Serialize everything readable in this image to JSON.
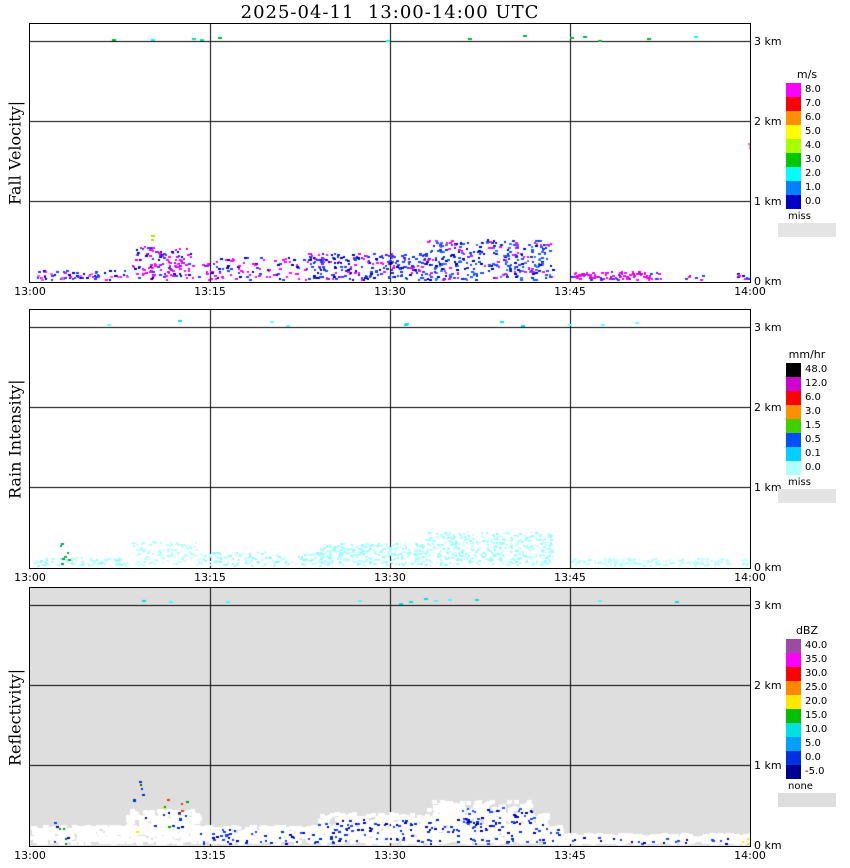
{
  "chart_data": {
    "type": "heatmap",
    "title": "2025-04-11  13:00-14:00 UTC",
    "x_ticks": [
      "13:00",
      "13:15",
      "13:30",
      "13:45",
      "14:00"
    ],
    "x_range_minutes": [
      0,
      60
    ],
    "y_ticks": [
      "3 km",
      "2 km",
      "1 km",
      "0 km"
    ],
    "y_range_km": [
      0,
      3.2
    ],
    "grid": true,
    "panels": [
      {
        "name": "Fall Velocity",
        "axis_label": "Fall Velocity|",
        "units": "m/s",
        "background": "#ffffff",
        "legend": {
          "title": "m/s",
          "entries": [
            {
              "label": "8.0",
              "color": "#ff00ff"
            },
            {
              "label": "7.0",
              "color": "#ff0000"
            },
            {
              "label": "6.0",
              "color": "#ff9000"
            },
            {
              "label": "5.0",
              "color": "#ffff00"
            },
            {
              "label": "4.0",
              "color": "#a8ff00"
            },
            {
              "label": "3.0",
              "color": "#00c800"
            },
            {
              "label": "2.0",
              "color": "#00ffff"
            },
            {
              "label": "1.0",
              "color": "#0080ff"
            },
            {
              "label": "0.0",
              "color": "#0000c8"
            }
          ],
          "missing": {
            "label": "miss",
            "color": "#e4e4e4"
          }
        },
        "echo_regions": [
          {
            "t": [
              0.3,
              8
            ],
            "h": [
              0,
              0.13
            ],
            "n": 70,
            "colors": [
              "#ff00ff",
              "#2040ff",
              "#0000b0",
              "#ff50ff",
              "#2040ff"
            ]
          },
          {
            "t": [
              8.5,
              13.5
            ],
            "h": [
              0,
              0.42
            ],
            "n": 130,
            "colors": [
              "#ff00ff",
              "#e000e0",
              "#ff00ff",
              "#2040ff",
              "#0000b0"
            ]
          },
          {
            "t": [
              9.7,
              10.3
            ],
            "h": [
              0.45,
              0.56
            ],
            "n": 3,
            "colors": [
              "#b0e000"
            ]
          },
          {
            "t": [
              14,
              23
            ],
            "h": [
              0,
              0.28
            ],
            "n": 100,
            "colors": [
              "#ff00ff",
              "#2040ff",
              "#0000b0",
              "#ff00ff"
            ]
          },
          {
            "t": [
              23,
              33
            ],
            "h": [
              0,
              0.33
            ],
            "n": 240,
            "colors": [
              "#2040ff",
              "#0000b0",
              "#ff00ff",
              "#1030d0",
              "#2040ff"
            ]
          },
          {
            "t": [
              33,
              43.5
            ],
            "h": [
              0,
              0.5
            ],
            "n": 320,
            "colors": [
              "#2050ff",
              "#0000b0",
              "#4070ff",
              "#0030d0",
              "#2050ff",
              "#ff00ff"
            ]
          },
          {
            "t": [
              45,
              52.5
            ],
            "h": [
              0,
              0.1
            ],
            "n": 100,
            "colors": [
              "#ff00ff",
              "#e000d0",
              "#ff00ff",
              "#2040ff"
            ]
          },
          {
            "t": [
              54.5,
              56
            ],
            "h": [
              0,
              0.07
            ],
            "n": 6,
            "colors": [
              "#2040ff",
              "#ff00ff"
            ]
          },
          {
            "t": [
              58.8,
              60
            ],
            "h": [
              0,
              0.08
            ],
            "n": 8,
            "colors": [
              "#ff00ff",
              "#2040ff",
              "#0000b0"
            ]
          },
          {
            "t": [
              59.5,
              60
            ],
            "h": [
              1.55,
              1.72
            ],
            "n": 3,
            "colors": [
              "#ff60a0"
            ]
          },
          {
            "t": [
              2,
              56
            ],
            "h": [
              2.99,
              3.06
            ],
            "n": 13,
            "colors": [
              "#00b040",
              "#00e0b0",
              "#00ffff"
            ],
            "size": [
              4,
              2
            ]
          }
        ]
      },
      {
        "name": "Rain Intensity",
        "axis_label": "Rain Intensity|",
        "units": "mm/hr",
        "background": "#ffffff",
        "legend": {
          "title": "mm/hr",
          "entries": [
            {
              "label": "48.0",
              "color": "#000000"
            },
            {
              "label": "12.0",
              "color": "#d000d0"
            },
            {
              "label": "6.0",
              "color": "#ff0000"
            },
            {
              "label": "3.0",
              "color": "#ff9000"
            },
            {
              "label": "1.5",
              "color": "#40d000"
            },
            {
              "label": "0.5",
              "color": "#0050ff"
            },
            {
              "label": "0.1",
              "color": "#00d0ff"
            },
            {
              "label": "0.0",
              "color": "#b0ffff"
            }
          ],
          "missing": {
            "label": "miss",
            "color": "#e4e4e4"
          }
        },
        "echo_regions": [
          {
            "t": [
              0.3,
              8
            ],
            "h": [
              0,
              0.1
            ],
            "n": 80,
            "colors": [
              "#b0ffff",
              "#ccffff",
              "#98f8f8"
            ]
          },
          {
            "t": [
              2.3,
              3.3
            ],
            "h": [
              0,
              0.3
            ],
            "n": 8,
            "colors": [
              "#20b020",
              "#00a060"
            ]
          },
          {
            "t": [
              8.5,
              14
            ],
            "h": [
              0,
              0.3
            ],
            "n": 100,
            "colors": [
              "#b0ffff",
              "#ccffff"
            ]
          },
          {
            "t": [
              14,
              24
            ],
            "h": [
              0,
              0.17
            ],
            "n": 130,
            "colors": [
              "#b0ffff",
              "#ccffff",
              "#98f8f8"
            ]
          },
          {
            "t": [
              24,
              33
            ],
            "h": [
              0,
              0.28
            ],
            "n": 300,
            "colors": [
              "#b0ffff",
              "#ccffff",
              "#a0fafa"
            ]
          },
          {
            "t": [
              33,
              43.5
            ],
            "h": [
              0,
              0.42
            ],
            "n": 420,
            "colors": [
              "#b0ffff",
              "#ccffff",
              "#a0fafa"
            ]
          },
          {
            "t": [
              45,
              60
            ],
            "h": [
              0,
              0.09
            ],
            "n": 160,
            "colors": [
              "#b0ffff",
              "#ccffff"
            ]
          },
          {
            "t": [
              2,
              52
            ],
            "h": [
              2.99,
              3.06
            ],
            "n": 11,
            "colors": [
              "#60ffff",
              "#00e0e0"
            ],
            "size": [
              4,
              2
            ]
          }
        ]
      },
      {
        "name": "Reflectivity",
        "axis_label": "Reflectivity|",
        "units": "dBZ",
        "background": "#dedede",
        "legend": {
          "title": "dBZ",
          "entries": [
            {
              "label": "40.0",
              "color": "#a048a8"
            },
            {
              "label": "35.0",
              "color": "#ff00ff"
            },
            {
              "label": "30.0",
              "color": "#ff0000"
            },
            {
              "label": "25.0",
              "color": "#ff8800"
            },
            {
              "label": "20.0",
              "color": "#ffe800"
            },
            {
              "label": "15.0",
              "color": "#00c000"
            },
            {
              "label": "10.0",
              "color": "#00e0e0"
            },
            {
              "label": "5.0",
              "color": "#00a0ff"
            },
            {
              "label": "0.0",
              "color": "#0030e0"
            },
            {
              "label": "-5.0",
              "color": "#000090"
            }
          ],
          "missing": {
            "label": "none",
            "color": "#dedede"
          }
        },
        "echo_regions": [
          {
            "t": [
              0,
              44
            ],
            "h": [
              0,
              0.2
            ],
            "n": 1100,
            "colors": [
              "#ffffff"
            ],
            "size": [
              6,
              4
            ]
          },
          {
            "t": [
              8,
              14
            ],
            "h": [
              0.15,
              0.4
            ],
            "n": 200,
            "colors": [
              "#ffffff"
            ],
            "size": [
              5,
              4
            ]
          },
          {
            "t": [
              24,
              43
            ],
            "h": [
              0.15,
              0.36
            ],
            "n": 380,
            "colors": [
              "#ffffff"
            ],
            "size": [
              5,
              4
            ]
          },
          {
            "t": [
              33,
              41.5
            ],
            "h": [
              0.3,
              0.52
            ],
            "n": 150,
            "colors": [
              "#ffffff"
            ],
            "size": [
              5,
              4
            ]
          },
          {
            "t": [
              44,
              60
            ],
            "h": [
              0,
              0.1
            ],
            "n": 300,
            "colors": [
              "#ffffff"
            ],
            "size": [
              6,
              4
            ]
          },
          {
            "t": [
              2,
              3.2
            ],
            "h": [
              0,
              0.28
            ],
            "n": 8,
            "colors": [
              "#00a000",
              "#0040ff",
              "#0000a0"
            ]
          },
          {
            "t": [
              8,
              13
            ],
            "h": [
              0.1,
              0.55
            ],
            "n": 22,
            "colors": [
              "#00a000",
              "#ffe000",
              "#ff3000",
              "#0030c0",
              "#000090"
            ]
          },
          {
            "t": [
              9,
              10.5
            ],
            "h": [
              0.55,
              0.8
            ],
            "n": 4,
            "colors": [
              "#006800",
              "#0030c0"
            ]
          },
          {
            "t": [
              14,
              24
            ],
            "h": [
              0,
              0.18
            ],
            "n": 45,
            "colors": [
              "#2040ff",
              "#0000a0",
              "#0030c0"
            ]
          },
          {
            "t": [
              24,
              44
            ],
            "h": [
              0,
              0.3
            ],
            "n": 150,
            "colors": [
              "#0000a0",
              "#2040ff",
              "#0030c0"
            ]
          },
          {
            "t": [
              36,
              42
            ],
            "h": [
              0.25,
              0.45
            ],
            "n": 40,
            "colors": [
              "#0000a0",
              "#2050ff"
            ]
          },
          {
            "t": [
              45,
              60
            ],
            "h": [
              0,
              0.08
            ],
            "n": 25,
            "colors": [
              "#2040ff",
              "#0000a0"
            ]
          },
          {
            "t": [
              59.3,
              60
            ],
            "h": [
              0,
              0.07
            ],
            "n": 3,
            "colors": [
              "#ffe000"
            ]
          },
          {
            "t": [
              2,
              55
            ],
            "h": [
              2.99,
              3.06
            ],
            "n": 12,
            "colors": [
              "#00e0e0",
              "#40ffff"
            ],
            "size": [
              4,
              2
            ]
          }
        ]
      }
    ]
  }
}
